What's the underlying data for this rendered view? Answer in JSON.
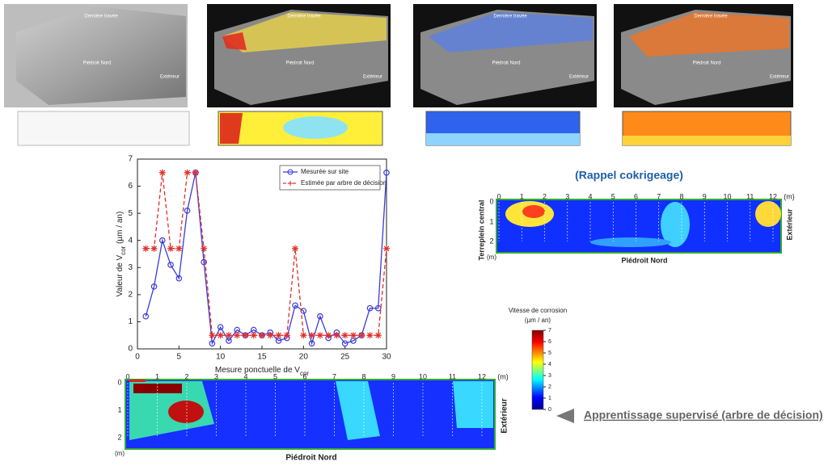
{
  "chart_data": {
    "type": "line",
    "xlabel": [
      "Mesure ponctuelle de V",
      "cor"
    ],
    "ylabel": [
      "Valeur de V",
      "cor",
      " (µm / an)"
    ],
    "x": [
      1,
      2,
      3,
      4,
      5,
      6,
      7,
      8,
      9,
      10,
      11,
      12,
      13,
      14,
      15,
      16,
      17,
      18,
      19,
      20,
      21,
      22,
      23,
      24,
      25,
      26,
      27,
      28,
      29,
      30
    ],
    "xlim": [
      0,
      30
    ],
    "xticks": [
      0,
      5,
      10,
      15,
      20,
      25,
      30
    ],
    "ylim": [
      0,
      7
    ],
    "yticks": [
      0,
      1,
      2,
      3,
      4,
      5,
      6,
      7
    ],
    "legend": "upper right",
    "series": [
      {
        "name": "Mesurée sur site",
        "color": "#3b3bd6",
        "marker": "circle",
        "dash": false,
        "values": [
          1.2,
          2.3,
          4.0,
          3.1,
          2.6,
          5.1,
          6.5,
          3.2,
          0.2,
          0.8,
          0.3,
          0.7,
          0.5,
          0.7,
          0.5,
          0.6,
          0.3,
          0.4,
          1.6,
          1.4,
          0.2,
          1.2,
          0.4,
          0.6,
          0.2,
          0.3,
          0.5,
          1.5,
          1.5,
          6.5
        ]
      },
      {
        "name": "Estimée par arbre de décision",
        "color": "#e0302a",
        "marker": "star",
        "dash": true,
        "values": [
          3.7,
          3.7,
          6.5,
          3.7,
          3.7,
          6.5,
          6.5,
          3.7,
          0.5,
          0.5,
          0.5,
          0.5,
          0.5,
          0.5,
          0.5,
          0.5,
          0.5,
          0.5,
          3.7,
          0.5,
          0.5,
          0.5,
          0.5,
          0.5,
          0.5,
          0.5,
          0.5,
          0.5,
          0.5,
          3.7
        ]
      }
    ]
  },
  "top_panels": [
    {
      "labels": [
        "Dernière travée",
        "Piédroit Nord",
        "Extérieur"
      ]
    },
    {
      "labels": [
        "Dernière travée",
        "Piédroit Nord",
        "Extérieur"
      ]
    },
    {
      "labels": [
        "Dernière travée",
        "Piédroit Nord",
        "Extérieur"
      ]
    },
    {
      "labels": [
        "Dernière travée",
        "Piédroit Nord",
        "Extérieur"
      ]
    }
  ],
  "kriging": {
    "title": "(Rappel cokrigeage)",
    "xticks": [
      0,
      1,
      2,
      3,
      4,
      5,
      6,
      7,
      8,
      9,
      10,
      11,
      12
    ],
    "x_unit": "(m)",
    "yticks": [
      0,
      1,
      2
    ],
    "y_unit": "(m)",
    "ylabel": "Terreplein central",
    "xlabel": "Piédroit Nord",
    "right_label": "Extérieur"
  },
  "tree_map": {
    "xticks": [
      0,
      1,
      2,
      3,
      4,
      5,
      6,
      7,
      8,
      9,
      10,
      11,
      12
    ],
    "x_unit": "(m)",
    "yticks": [
      0,
      1,
      2
    ],
    "y_unit": "(m)",
    "xlabel": "Piédroit Nord",
    "right_label": "Extérieur"
  },
  "colorbar": {
    "title": "Vitesse de corrosion",
    "unit": "(µm / an)",
    "ticks": [
      0,
      1,
      2,
      3,
      4,
      5,
      6,
      7
    ]
  },
  "caption": "Apprentissage supervisé (arbre de décision)"
}
